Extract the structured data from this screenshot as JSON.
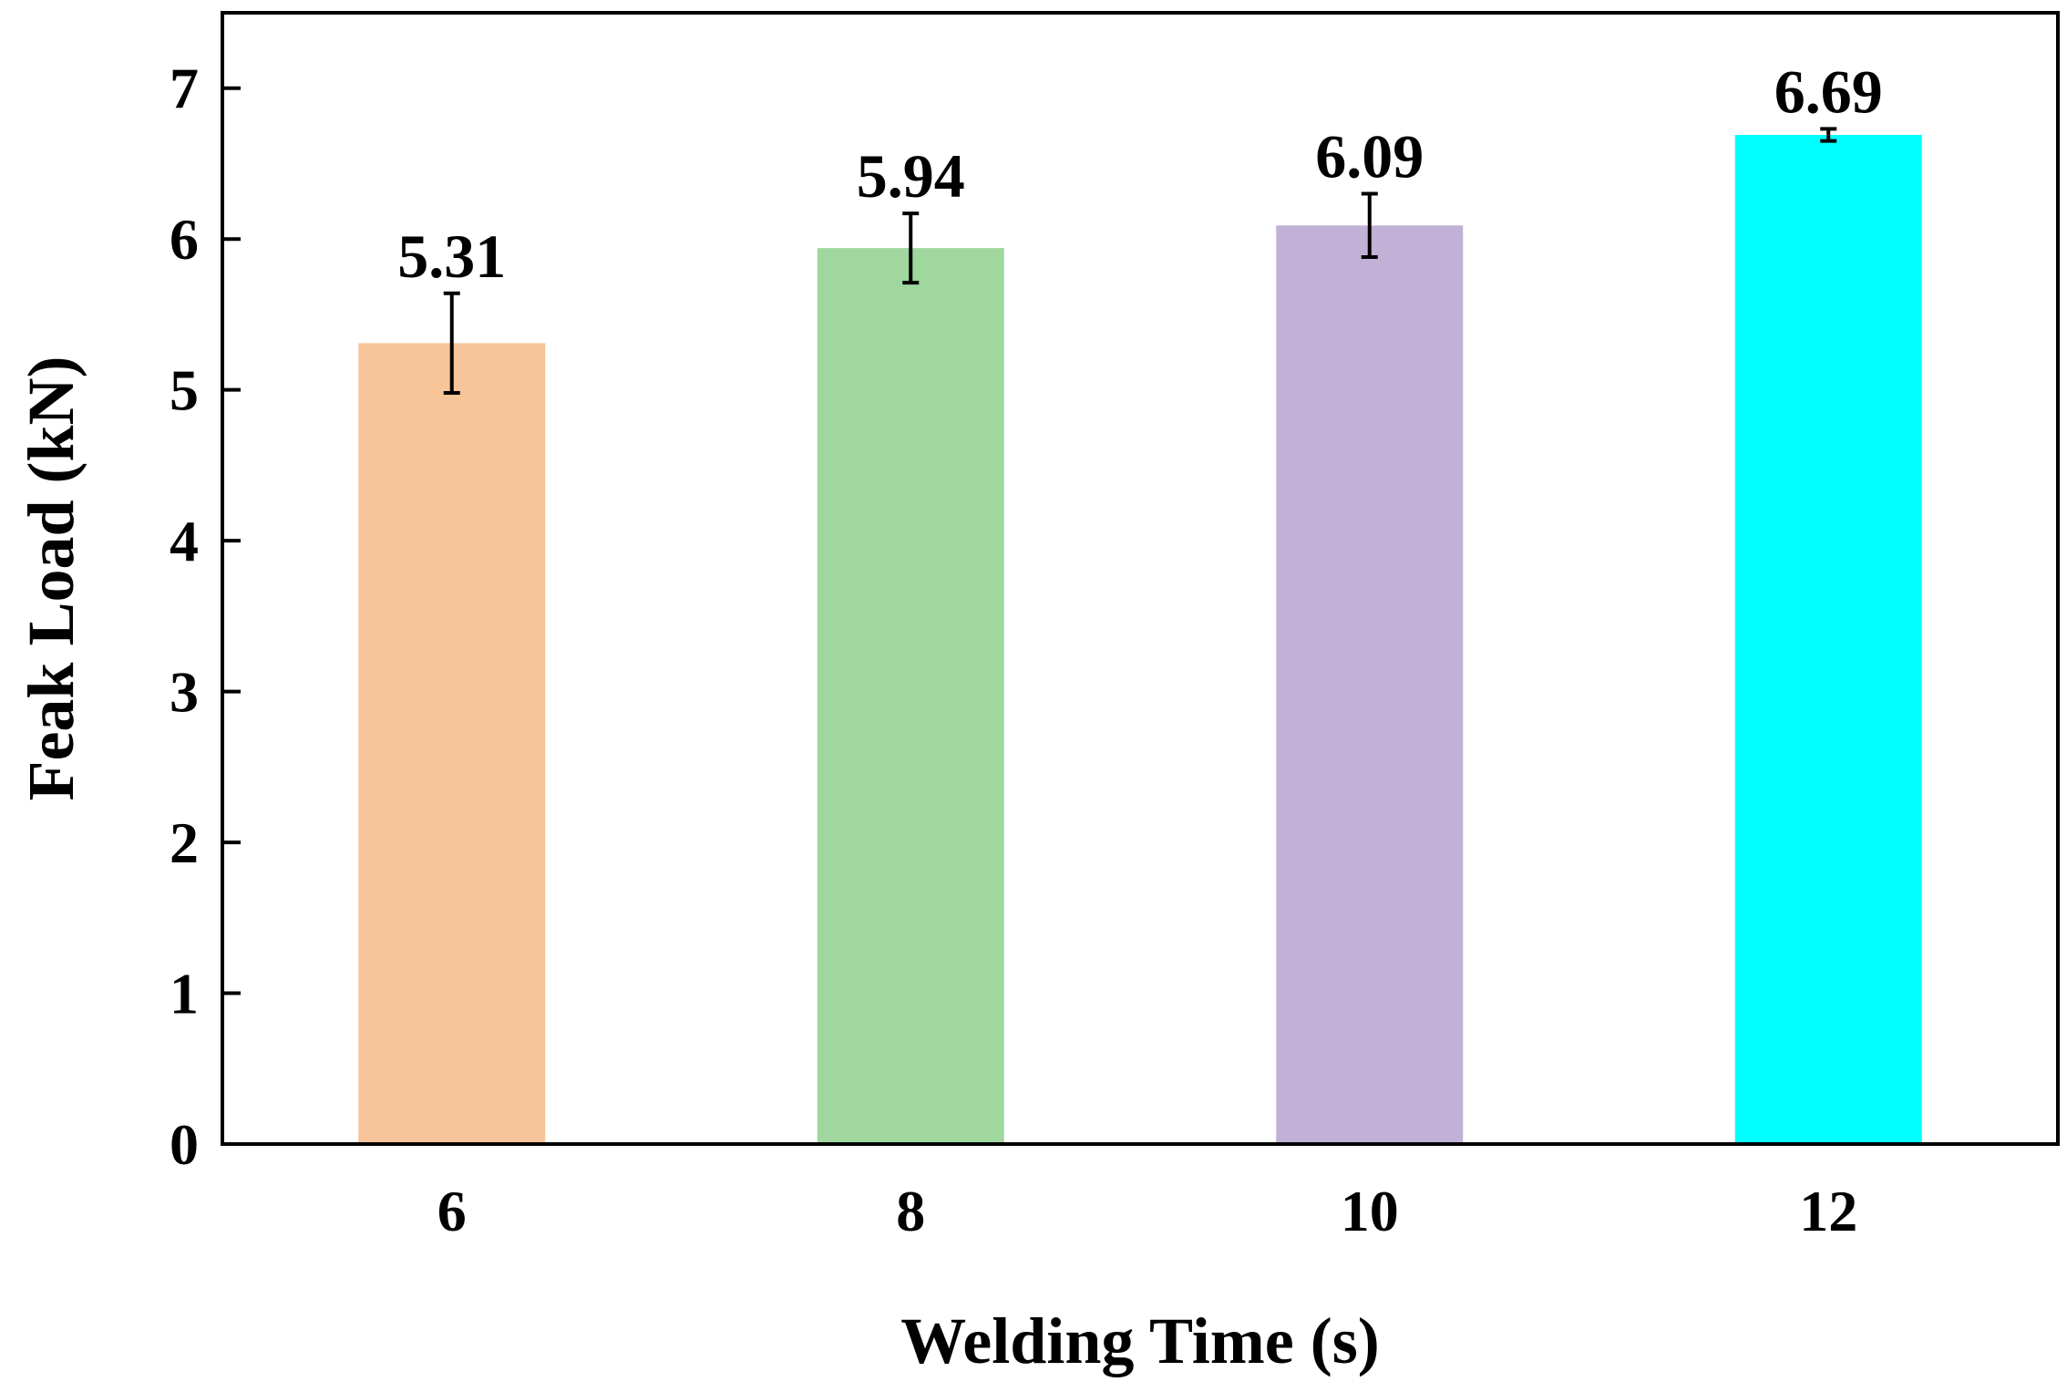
{
  "chart_data": {
    "type": "bar",
    "title": "",
    "xlabel": "Welding Time (s)",
    "ylabel": "Feak Load (kN)",
    "categories": [
      "6",
      "8",
      "10",
      "12"
    ],
    "values": [
      5.31,
      5.94,
      6.09,
      6.69
    ],
    "value_labels": [
      "5.31",
      "5.94",
      "6.09",
      "6.69"
    ],
    "errors": [
      0.33,
      0.23,
      0.21,
      0.04
    ],
    "colors": [
      "#F7C599",
      "#A0D79E",
      "#C1B1D6",
      "#00FFFF"
    ],
    "ylim": [
      0,
      7.5
    ],
    "yticks": [
      0,
      1,
      2,
      3,
      4,
      5,
      6,
      7
    ],
    "ytick_labels": [
      "0",
      "1",
      "2",
      "3",
      "4",
      "5",
      "6",
      "7"
    ],
    "grid": false,
    "legend": "none"
  }
}
